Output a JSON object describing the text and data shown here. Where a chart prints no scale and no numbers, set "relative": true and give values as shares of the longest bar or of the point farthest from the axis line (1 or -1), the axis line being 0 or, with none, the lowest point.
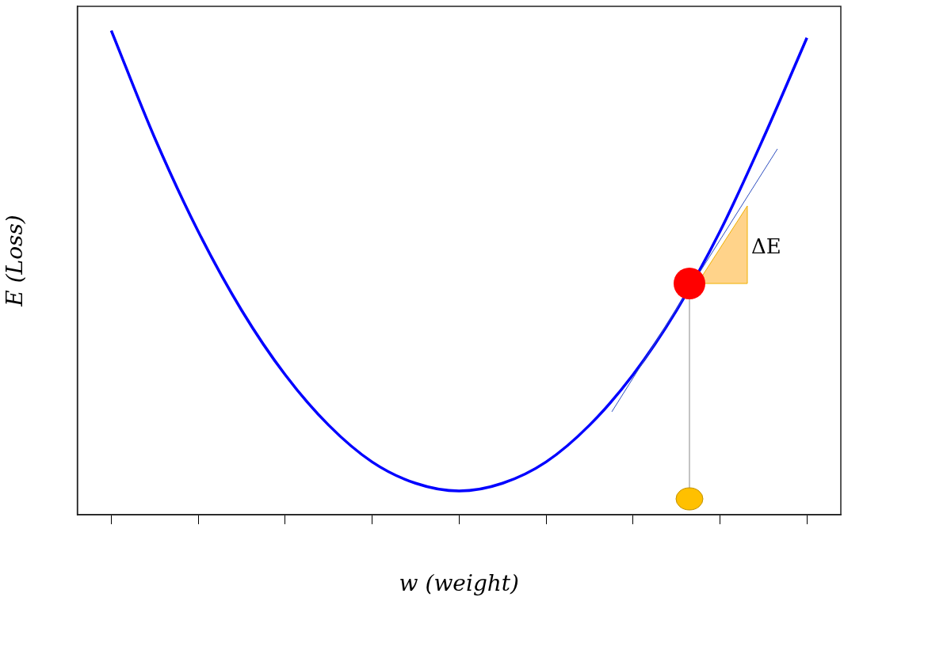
{
  "chart_data": {
    "type": "line",
    "relative": true,
    "xlabel": "w (weight)",
    "ylabel": "E (Loss)",
    "annotations": [
      "ΔE"
    ],
    "categories": [
      null,
      null,
      null,
      null,
      null,
      null,
      null,
      null,
      null,
      null,
      null,
      null,
      null,
      null,
      null,
      null,
      null
    ],
    "series": [
      {
        "color": "#0000ff",
        "values": [
          1.0,
          0.778,
          0.585,
          0.422,
          0.289,
          0.185,
          0.109,
          0.065,
          0.049,
          0.065,
          0.109,
          0.185,
          0.289,
          0.422,
          0.585,
          0.778,
          0.985
        ]
      }
    ],
    "grid": false,
    "legend": false,
    "marker": "none",
    "line_style": "solid"
  }
}
